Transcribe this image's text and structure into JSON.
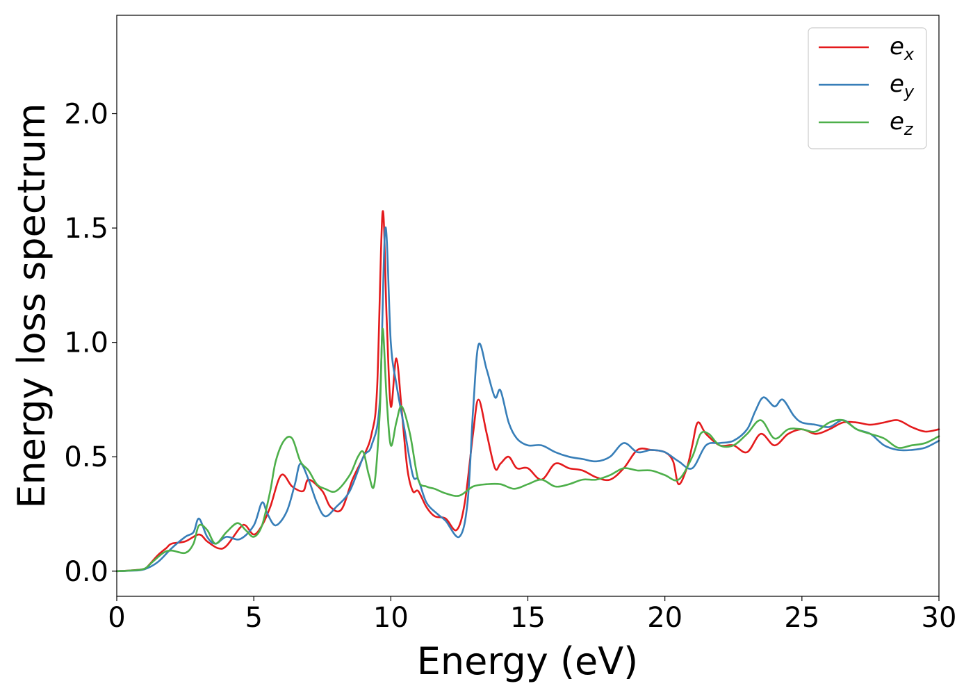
{
  "chart_data": {
    "type": "line",
    "title": "",
    "xlabel": "Energy (eV)",
    "ylabel": "Energy loss spectrum",
    "xlim": [
      0,
      30
    ],
    "ylim": [
      -0.11,
      2.43
    ],
    "xticks": [
      0,
      5,
      10,
      15,
      20,
      25,
      30
    ],
    "yticks": [
      0.0,
      0.5,
      1.0,
      1.5,
      2.0
    ],
    "xtick_labels": [
      "0",
      "5",
      "10",
      "15",
      "20",
      "25",
      "30"
    ],
    "ytick_labels": [
      "0.0",
      "0.5",
      "1.0",
      "1.5",
      "2.0"
    ],
    "grid": false,
    "legend_position": "top-right",
    "series": [
      {
        "name": "e_x",
        "label_base": "e",
        "label_sub": "x",
        "color": "#e41a1c",
        "points": [
          [
            0,
            0
          ],
          [
            0.5,
            0.003
          ],
          [
            1.0,
            0.01
          ],
          [
            1.2,
            0.03
          ],
          [
            1.5,
            0.07
          ],
          [
            1.8,
            0.1
          ],
          [
            2.0,
            0.12
          ],
          [
            2.5,
            0.13
          ],
          [
            3.0,
            0.16
          ],
          [
            3.3,
            0.13
          ],
          [
            3.7,
            0.1
          ],
          [
            4.0,
            0.11
          ],
          [
            4.5,
            0.19
          ],
          [
            4.7,
            0.2
          ],
          [
            5.0,
            0.16
          ],
          [
            5.3,
            0.2
          ],
          [
            5.6,
            0.28
          ],
          [
            6.0,
            0.42
          ],
          [
            6.4,
            0.37
          ],
          [
            6.8,
            0.35
          ],
          [
            7.0,
            0.4
          ],
          [
            7.5,
            0.35
          ],
          [
            7.8,
            0.28
          ],
          [
            8.2,
            0.27
          ],
          [
            8.6,
            0.4
          ],
          [
            9.0,
            0.5
          ],
          [
            9.3,
            0.6
          ],
          [
            9.5,
            0.8
          ],
          [
            9.7,
            1.57
          ],
          [
            9.85,
            1.1
          ],
          [
            10.0,
            0.72
          ],
          [
            10.2,
            0.93
          ],
          [
            10.4,
            0.7
          ],
          [
            10.6,
            0.45
          ],
          [
            10.8,
            0.35
          ],
          [
            11.0,
            0.35
          ],
          [
            11.3,
            0.28
          ],
          [
            11.6,
            0.24
          ],
          [
            12.0,
            0.23
          ],
          [
            12.4,
            0.18
          ],
          [
            12.7,
            0.3
          ],
          [
            13.0,
            0.6
          ],
          [
            13.2,
            0.75
          ],
          [
            13.5,
            0.6
          ],
          [
            13.8,
            0.45
          ],
          [
            14.0,
            0.47
          ],
          [
            14.3,
            0.5
          ],
          [
            14.6,
            0.45
          ],
          [
            15.0,
            0.45
          ],
          [
            15.5,
            0.4
          ],
          [
            16.0,
            0.47
          ],
          [
            16.5,
            0.45
          ],
          [
            17.0,
            0.44
          ],
          [
            17.5,
            0.41
          ],
          [
            18.0,
            0.4
          ],
          [
            18.5,
            0.45
          ],
          [
            19.0,
            0.53
          ],
          [
            19.5,
            0.53
          ],
          [
            20.0,
            0.52
          ],
          [
            20.3,
            0.48
          ],
          [
            20.5,
            0.38
          ],
          [
            20.8,
            0.45
          ],
          [
            21.0,
            0.55
          ],
          [
            21.2,
            0.65
          ],
          [
            21.5,
            0.6
          ],
          [
            22.0,
            0.55
          ],
          [
            22.5,
            0.55
          ],
          [
            23.0,
            0.52
          ],
          [
            23.5,
            0.6
          ],
          [
            24.0,
            0.55
          ],
          [
            24.5,
            0.6
          ],
          [
            25.0,
            0.62
          ],
          [
            25.5,
            0.6
          ],
          [
            26.0,
            0.62
          ],
          [
            26.5,
            0.65
          ],
          [
            27.0,
            0.65
          ],
          [
            27.5,
            0.64
          ],
          [
            28.0,
            0.65
          ],
          [
            28.5,
            0.66
          ],
          [
            29.0,
            0.63
          ],
          [
            29.5,
            0.61
          ],
          [
            30.0,
            0.62
          ]
        ]
      },
      {
        "name": "e_y",
        "label_base": "e",
        "label_sub": "y",
        "color": "#377eb8",
        "points": [
          [
            0,
            0
          ],
          [
            0.5,
            0.002
          ],
          [
            1.0,
            0.008
          ],
          [
            1.5,
            0.04
          ],
          [
            2.0,
            0.1
          ],
          [
            2.5,
            0.15
          ],
          [
            2.8,
            0.17
          ],
          [
            3.0,
            0.23
          ],
          [
            3.3,
            0.15
          ],
          [
            3.6,
            0.12
          ],
          [
            4.0,
            0.15
          ],
          [
            4.5,
            0.14
          ],
          [
            5.0,
            0.2
          ],
          [
            5.3,
            0.3
          ],
          [
            5.5,
            0.25
          ],
          [
            5.8,
            0.2
          ],
          [
            6.2,
            0.26
          ],
          [
            6.5,
            0.38
          ],
          [
            6.7,
            0.47
          ],
          [
            7.0,
            0.4
          ],
          [
            7.3,
            0.3
          ],
          [
            7.6,
            0.24
          ],
          [
            8.0,
            0.28
          ],
          [
            8.5,
            0.35
          ],
          [
            9.0,
            0.5
          ],
          [
            9.3,
            0.55
          ],
          [
            9.6,
            0.75
          ],
          [
            9.8,
            1.5
          ],
          [
            10.0,
            1.0
          ],
          [
            10.2,
            0.82
          ],
          [
            10.5,
            0.62
          ],
          [
            10.8,
            0.42
          ],
          [
            11.0,
            0.4
          ],
          [
            11.3,
            0.3
          ],
          [
            11.7,
            0.25
          ],
          [
            12.0,
            0.22
          ],
          [
            12.5,
            0.15
          ],
          [
            12.8,
            0.3
          ],
          [
            13.0,
            0.7
          ],
          [
            13.2,
            0.99
          ],
          [
            13.5,
            0.88
          ],
          [
            13.8,
            0.76
          ],
          [
            14.0,
            0.79
          ],
          [
            14.3,
            0.65
          ],
          [
            14.6,
            0.58
          ],
          [
            15.0,
            0.55
          ],
          [
            15.5,
            0.55
          ],
          [
            16.0,
            0.52
          ],
          [
            16.5,
            0.5
          ],
          [
            17.0,
            0.49
          ],
          [
            17.5,
            0.48
          ],
          [
            18.0,
            0.5
          ],
          [
            18.5,
            0.56
          ],
          [
            19.0,
            0.52
          ],
          [
            19.5,
            0.53
          ],
          [
            20.0,
            0.52
          ],
          [
            20.5,
            0.48
          ],
          [
            21.0,
            0.45
          ],
          [
            21.5,
            0.55
          ],
          [
            22.0,
            0.56
          ],
          [
            22.5,
            0.57
          ],
          [
            23.0,
            0.62
          ],
          [
            23.3,
            0.7
          ],
          [
            23.6,
            0.76
          ],
          [
            24.0,
            0.72
          ],
          [
            24.3,
            0.75
          ],
          [
            24.7,
            0.68
          ],
          [
            25.0,
            0.65
          ],
          [
            25.5,
            0.64
          ],
          [
            26.0,
            0.63
          ],
          [
            26.5,
            0.66
          ],
          [
            27.0,
            0.62
          ],
          [
            27.5,
            0.6
          ],
          [
            28.0,
            0.55
          ],
          [
            28.5,
            0.53
          ],
          [
            29.0,
            0.53
          ],
          [
            29.5,
            0.54
          ],
          [
            30.0,
            0.57
          ]
        ]
      },
      {
        "name": "e_z",
        "label_base": "e",
        "label_sub": "z",
        "color": "#4daf4a",
        "points": [
          [
            0,
            0
          ],
          [
            0.5,
            0.003
          ],
          [
            1.0,
            0.01
          ],
          [
            1.3,
            0.04
          ],
          [
            1.7,
            0.08
          ],
          [
            2.0,
            0.09
          ],
          [
            2.5,
            0.08
          ],
          [
            2.8,
            0.12
          ],
          [
            3.0,
            0.2
          ],
          [
            3.3,
            0.18
          ],
          [
            3.6,
            0.12
          ],
          [
            4.0,
            0.17
          ],
          [
            4.4,
            0.21
          ],
          [
            4.7,
            0.18
          ],
          [
            5.0,
            0.15
          ],
          [
            5.3,
            0.2
          ],
          [
            5.6,
            0.35
          ],
          [
            5.8,
            0.48
          ],
          [
            6.1,
            0.57
          ],
          [
            6.4,
            0.58
          ],
          [
            6.7,
            0.48
          ],
          [
            7.0,
            0.44
          ],
          [
            7.3,
            0.38
          ],
          [
            7.6,
            0.36
          ],
          [
            8.0,
            0.35
          ],
          [
            8.5,
            0.42
          ],
          [
            8.8,
            0.5
          ],
          [
            9.0,
            0.52
          ],
          [
            9.2,
            0.42
          ],
          [
            9.4,
            0.38
          ],
          [
            9.6,
            0.7
          ],
          [
            9.7,
            1.06
          ],
          [
            9.85,
            0.75
          ],
          [
            10.0,
            0.55
          ],
          [
            10.2,
            0.65
          ],
          [
            10.4,
            0.72
          ],
          [
            10.7,
            0.6
          ],
          [
            11.0,
            0.4
          ],
          [
            11.3,
            0.37
          ],
          [
            11.6,
            0.36
          ],
          [
            12.0,
            0.34
          ],
          [
            12.5,
            0.33
          ],
          [
            13.0,
            0.37
          ],
          [
            13.5,
            0.38
          ],
          [
            14.0,
            0.38
          ],
          [
            14.5,
            0.36
          ],
          [
            15.0,
            0.38
          ],
          [
            15.5,
            0.4
          ],
          [
            16.0,
            0.37
          ],
          [
            16.5,
            0.38
          ],
          [
            17.0,
            0.4
          ],
          [
            17.5,
            0.4
          ],
          [
            18.0,
            0.42
          ],
          [
            18.5,
            0.45
          ],
          [
            19.0,
            0.44
          ],
          [
            19.5,
            0.44
          ],
          [
            20.0,
            0.42
          ],
          [
            20.5,
            0.4
          ],
          [
            21.0,
            0.5
          ],
          [
            21.3,
            0.6
          ],
          [
            21.6,
            0.6
          ],
          [
            22.0,
            0.55
          ],
          [
            22.5,
            0.55
          ],
          [
            23.0,
            0.6
          ],
          [
            23.5,
            0.66
          ],
          [
            24.0,
            0.58
          ],
          [
            24.5,
            0.62
          ],
          [
            25.0,
            0.62
          ],
          [
            25.5,
            0.61
          ],
          [
            26.0,
            0.65
          ],
          [
            26.5,
            0.66
          ],
          [
            27.0,
            0.62
          ],
          [
            27.5,
            0.6
          ],
          [
            28.0,
            0.58
          ],
          [
            28.5,
            0.54
          ],
          [
            29.0,
            0.55
          ],
          [
            29.5,
            0.56
          ],
          [
            30.0,
            0.59
          ]
        ]
      }
    ]
  }
}
